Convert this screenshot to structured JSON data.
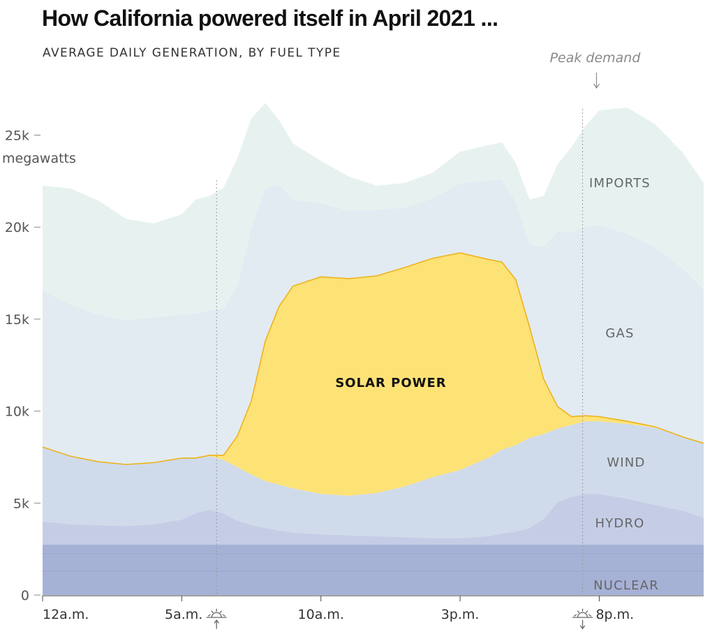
{
  "page": {
    "title": "How California powered itself in April 2021 ...",
    "subtitle": "AVERAGE DAILY GENERATION, BY FUEL TYPE"
  },
  "colors": {
    "nuclear": "#a6b1d6",
    "hydro": "#c5cde6",
    "wind": "#cfdbea",
    "solar": "#fde276",
    "solar_edge": "#efb21c",
    "gas": "#e2ebf1",
    "imports": "#e7f2f0",
    "text": "#555555"
  },
  "chart_data": {
    "type": "area",
    "stacked": true,
    "title": "How California powered itself in April 2021 ...",
    "subtitle": "AVERAGE DAILY GENERATION, BY FUEL TYPE",
    "y_unit": "megawatts",
    "ylim": [
      0,
      27500
    ],
    "yticks": [
      0,
      5000,
      10000,
      15000,
      20000,
      25000
    ],
    "ytick_labels": [
      "0",
      "5k",
      "10k",
      "15k",
      "20k",
      "25k"
    ],
    "xlim": [
      0,
      23.75
    ],
    "xticks": [
      0,
      5,
      10,
      15,
      20
    ],
    "xtick_labels": [
      "12a.m.",
      "5a.m.",
      "10a.m.",
      "3p.m.",
      "8p.m."
    ],
    "x_hours": [
      0,
      1,
      2,
      3,
      4,
      5,
      5.5,
      6,
      6.5,
      7,
      7.5,
      8,
      8.5,
      9,
      10,
      11,
      12,
      13,
      14,
      15,
      16,
      16.5,
      17,
      17.5,
      18,
      18.5,
      19,
      19.5,
      20,
      21,
      22,
      23,
      23.75
    ],
    "series": [
      {
        "name": "NUCLEAR",
        "values": [
          2750,
          2750,
          2750,
          2750,
          2750,
          2750,
          2750,
          2750,
          2750,
          2750,
          2750,
          2750,
          2750,
          2750,
          2750,
          2750,
          2750,
          2750,
          2750,
          2750,
          2750,
          2750,
          2750,
          2750,
          2750,
          2750,
          2750,
          2750,
          2750,
          2750,
          2750,
          2750,
          2750
        ]
      },
      {
        "name": "HYDRO",
        "values": [
          1250,
          1100,
          1050,
          1000,
          1100,
          1350,
          1700,
          1900,
          1700,
          1300,
          1050,
          900,
          750,
          650,
          550,
          500,
          450,
          400,
          350,
          350,
          450,
          600,
          700,
          900,
          1400,
          2300,
          2600,
          2750,
          2750,
          2500,
          2150,
          1850,
          1450
        ]
      },
      {
        "name": "WIND",
        "values": [
          4050,
          3700,
          3450,
          3350,
          3350,
          3350,
          3000,
          2900,
          2900,
          2900,
          2750,
          2550,
          2500,
          2400,
          2200,
          2150,
          2350,
          2750,
          3300,
          3700,
          4250,
          4550,
          4700,
          4900,
          4600,
          4000,
          3900,
          3950,
          3950,
          4050,
          4200,
          4000,
          4050
        ]
      },
      {
        "name": "SOLAR POWER",
        "values": [
          0,
          0,
          0,
          0,
          0,
          0,
          0,
          50,
          250,
          1700,
          4000,
          7600,
          9700,
          11000,
          11800,
          11800,
          11800,
          11900,
          11900,
          11800,
          10800,
          10200,
          9000,
          6000,
          3000,
          1200,
          450,
          300,
          250,
          150,
          50,
          0,
          0
        ]
      },
      {
        "name": "GAS",
        "values": [
          8500,
          8250,
          8000,
          7850,
          7900,
          7800,
          7850,
          7900,
          7950,
          8200,
          9400,
          8300,
          6600,
          4700,
          4000,
          3700,
          3600,
          3250,
          3250,
          3800,
          4300,
          4500,
          4250,
          4500,
          7200,
          9500,
          10000,
          10300,
          10400,
          10200,
          9750,
          9150,
          8400
        ]
      },
      {
        "name": "IMPORTS",
        "values": [
          5700,
          6300,
          6200,
          5500,
          5100,
          5450,
          6200,
          6200,
          6600,
          6900,
          5950,
          4650,
          3500,
          3050,
          2300,
          1850,
          1300,
          1350,
          1400,
          1700,
          1900,
          2000,
          2100,
          2450,
          2750,
          3650,
          4650,
          5450,
          6250,
          6850,
          6700,
          6300,
          5750
        ]
      }
    ],
    "series_labels": [
      "IMPORTS",
      "GAS",
      "SOLAR POWER",
      "WIND",
      "HYDRO",
      "NUCLEAR"
    ],
    "annotations": [
      {
        "text": "Peak demand",
        "x": 19.9,
        "arrow": "down"
      }
    ],
    "markers": [
      {
        "type": "sunrise",
        "x": 6.25
      },
      {
        "type": "sunset",
        "x": 19.4
      }
    ],
    "grid": false
  }
}
